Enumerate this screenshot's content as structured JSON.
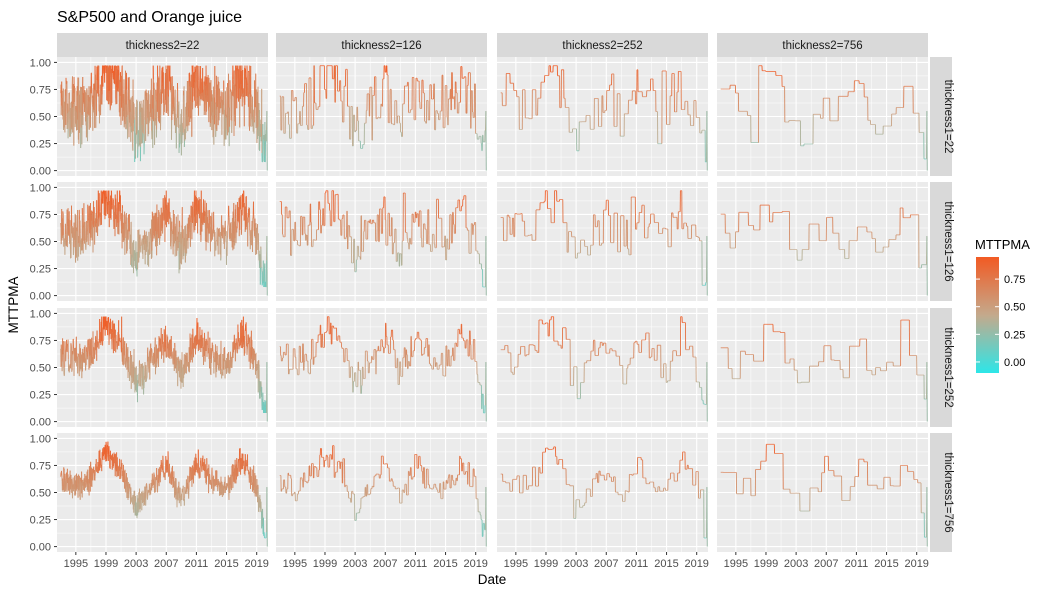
{
  "chart_data": {
    "type": "line",
    "title": "S&P500 and Orange juice",
    "xlabel": "Date",
    "ylabel": "MTTPMA",
    "x_ticks": [
      "1995",
      "1999",
      "2003",
      "2007",
      "2011",
      "2015",
      "2019"
    ],
    "x_range": [
      1992.5,
      2020.5
    ],
    "y_ticks": [
      "0.00",
      "0.25",
      "0.50",
      "0.75",
      "1.00"
    ],
    "ylim": [
      -0.05,
      1.05
    ],
    "grid": true,
    "facet_columns": [
      "thickness2=22",
      "thickness2=126",
      "thickness2=252",
      "thickness2=756"
    ],
    "facet_rows": [
      "thickness1=22",
      "thickness1=126",
      "thickness1=252",
      "thickness1=756"
    ],
    "legend": {
      "title": "MTTPMA",
      "position": "right",
      "ticks": [
        "0.75",
        "0.50",
        "0.25",
        "0.00"
      ],
      "tick_values": [
        0.75,
        0.5,
        0.25,
        0.0
      ],
      "range": [
        -0.1,
        0.95
      ],
      "color_low": "#2de6e8",
      "color_mid": "#c4a98c",
      "color_high": "#f25a23"
    },
    "panel_background": "#ebebeb",
    "strip_background": "#d9d9d9",
    "series_shape": {
      "anchors_year": [
        1993,
        1995,
        1997,
        1999,
        2001,
        2003,
        2005,
        2007,
        2009,
        2011,
        2013,
        2015,
        2017,
        2019,
        2020
      ],
      "anchors_value": [
        0.62,
        0.55,
        0.62,
        0.88,
        0.72,
        0.35,
        0.55,
        0.75,
        0.42,
        0.78,
        0.6,
        0.52,
        0.8,
        0.55,
        0.1
      ],
      "noise_by_thickness1": [
        0.3,
        0.22,
        0.16,
        0.12
      ],
      "smoothing_by_thickness2": [
        1,
        6,
        12,
        28
      ]
    }
  }
}
